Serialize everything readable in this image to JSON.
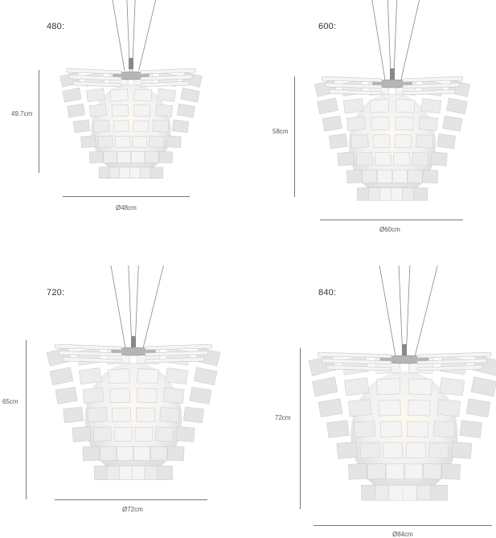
{
  "lamps": [
    {
      "size_label": "480:",
      "height_label": "49.7cm",
      "diameter_label": "Ø48cm"
    },
    {
      "size_label": "600:",
      "height_label": "58cm",
      "diameter_label": "Ø60cm"
    },
    {
      "size_label": "720:",
      "height_label": "65cm",
      "diameter_label": "Ø72cm"
    },
    {
      "size_label": "840:",
      "height_label": "72cm",
      "diameter_label": "Ø84cm"
    }
  ]
}
